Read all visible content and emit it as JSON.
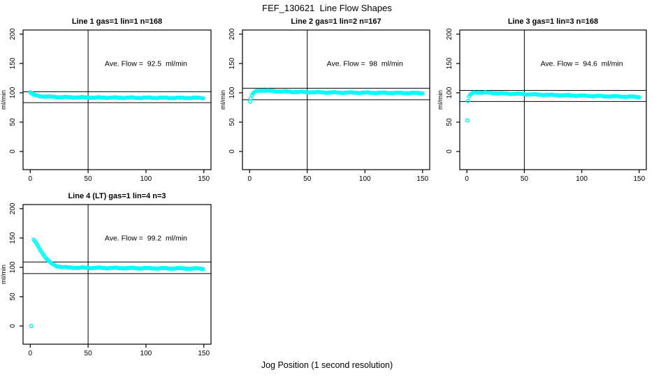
{
  "page": {
    "title": "FEF_130621  Line Flow Shapes",
    "xlabel": "Jog Position (1 second resolution)"
  },
  "chart_data": {
    "type": "scatter",
    "point_color": "#00FFFF",
    "axis_color": "#000000",
    "background": "#ffffff",
    "ylabel": "ml/min",
    "x_ticks": [
      0,
      50,
      100,
      150
    ],
    "y_ticks": [
      0,
      50,
      100,
      150,
      200
    ],
    "xlim": [
      -6.2,
      156.2
    ],
    "ylim": [
      -31,
      207
    ],
    "grid": false,
    "legend": "none",
    "panels": [
      {
        "title": "Line 1 gas=1 lin=1 n=168",
        "annotation": "Ave. Flow =  92.5  ml/min",
        "ave_flow": 92.5,
        "n": 168,
        "vline_x": 50,
        "hlines": [
          101.8,
          83.2
        ],
        "annotation_at": [
          100,
          150
        ],
        "profile": [
          [
            0,
            101
          ],
          [
            1,
            99
          ],
          [
            2,
            97.5
          ],
          [
            3,
            96.5
          ],
          [
            5,
            95.5
          ],
          [
            8,
            94.5
          ],
          [
            12,
            93.8
          ],
          [
            20,
            93
          ],
          [
            35,
            92.3
          ],
          [
            60,
            91.8
          ],
          [
            100,
            91.5
          ],
          [
            150,
            91.2
          ]
        ],
        "outliers": []
      },
      {
        "title": "Line 2 gas=1 lin=2 n=167",
        "annotation": "Ave. Flow =  98  ml/min",
        "ave_flow": 98,
        "n": 167,
        "vline_x": 50,
        "hlines": [
          107.8,
          88.2
        ],
        "annotation_at": [
          100,
          150
        ],
        "profile": [
          [
            2,
            95
          ],
          [
            3,
            99
          ],
          [
            5,
            102
          ],
          [
            7,
            103.5
          ],
          [
            10,
            104
          ],
          [
            15,
            103.5
          ],
          [
            25,
            102.5
          ],
          [
            40,
            101.5
          ],
          [
            70,
            100.5
          ],
          [
            110,
            100
          ],
          [
            150,
            99.5
          ]
        ],
        "outliers": [
          [
            0.5,
            85
          ],
          [
            1,
            90
          ]
        ]
      },
      {
        "title": "Line 3 gas=1 lin=3 n=168",
        "annotation": "Ave. Flow =  94.6  ml/min",
        "ave_flow": 94.6,
        "n": 168,
        "vline_x": 50,
        "hlines": [
          104.1,
          85.1
        ],
        "annotation_at": [
          100,
          150
        ],
        "profile": [
          [
            2,
            93
          ],
          [
            3,
            97
          ],
          [
            5,
            99.5
          ],
          [
            8,
            100.8
          ],
          [
            15,
            100.3
          ],
          [
            30,
            99
          ],
          [
            60,
            97
          ],
          [
            100,
            95
          ],
          [
            130,
            93.8
          ],
          [
            150,
            93
          ]
        ],
        "outliers": [
          [
            0.5,
            53
          ],
          [
            1,
            86
          ]
        ]
      },
      {
        "title": "Line 4 (LT) gas=1 lin=4 n=3",
        "annotation": "Ave. Flow =  99.2  ml/min",
        "ave_flow": 99.2,
        "n": 3,
        "vline_x": 50,
        "hlines": [
          109.1,
          89.3
        ],
        "annotation_at": [
          100,
          150
        ],
        "profile": [
          [
            3,
            147
          ],
          [
            4,
            144.5
          ],
          [
            5,
            141.5
          ],
          [
            6,
            138.5
          ],
          [
            7,
            135.5
          ],
          [
            8,
            132
          ],
          [
            9,
            129
          ],
          [
            10,
            126
          ],
          [
            11,
            123
          ],
          [
            12,
            120
          ],
          [
            13,
            117.5
          ],
          [
            14,
            115
          ],
          [
            15,
            112.5
          ],
          [
            16,
            110.5
          ],
          [
            18,
            107
          ],
          [
            20,
            104.5
          ],
          [
            22,
            102.8
          ],
          [
            25,
            101.3
          ],
          [
            28,
            100.4
          ],
          [
            32,
            99.8
          ],
          [
            40,
            99.3
          ],
          [
            60,
            99
          ],
          [
            90,
            98.6
          ],
          [
            120,
            98.2
          ],
          [
            150,
            97.8
          ]
        ],
        "outliers": [
          [
            1,
            0
          ]
        ]
      }
    ]
  }
}
